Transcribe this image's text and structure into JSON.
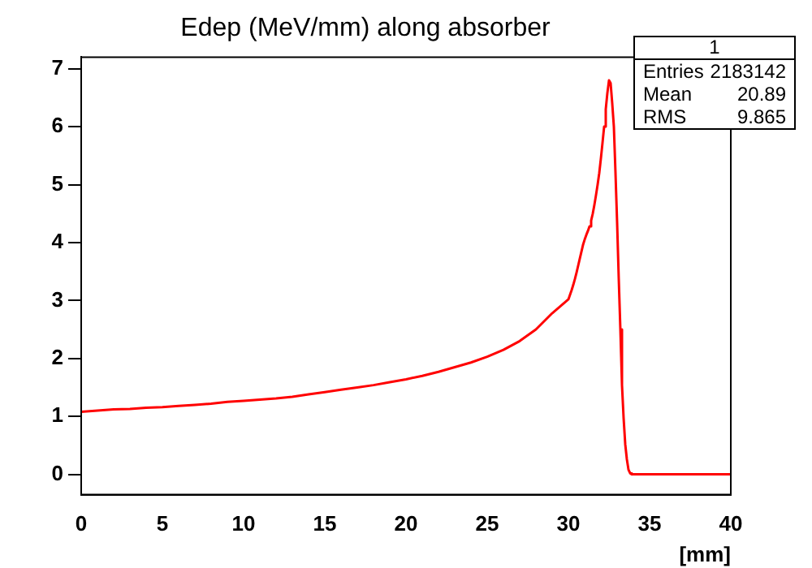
{
  "chart_data": {
    "type": "line",
    "title": "Edep (MeV/mm) along absorber",
    "xlabel": "[mm]",
    "x": [
      0,
      1,
      2,
      3,
      4,
      5,
      6,
      7,
      8,
      9,
      10,
      11,
      12,
      13,
      14,
      15,
      16,
      17,
      18,
      19,
      20,
      21,
      22,
      23,
      24,
      25,
      26,
      27,
      28,
      29,
      30,
      30.1,
      30.2,
      30.3,
      30.4,
      30.5,
      30.6,
      30.7,
      30.8,
      30.9,
      31,
      31.1,
      31.2,
      31.3,
      31.4,
      31.5,
      31.6,
      31.7,
      31.8,
      31.9,
      32,
      32.1,
      32.2,
      32.3,
      32.4,
      32.5,
      32.6,
      32.7,
      32.8,
      32.9,
      33,
      33.1,
      33.2,
      33.3,
      33.4,
      33.5,
      33.6,
      33.7,
      33.8,
      33.9,
      34,
      35,
      36,
      37,
      38,
      39,
      40
    ],
    "values": [
      1.08,
      1.1,
      1.12,
      1.13,
      1.15,
      1.16,
      1.18,
      1.2,
      1.22,
      1.25,
      1.27,
      1.29,
      1.31,
      1.34,
      1.38,
      1.42,
      1.46,
      1.5,
      1.54,
      1.59,
      1.64,
      1.7,
      1.77,
      1.85,
      1.93,
      2.03,
      2.15,
      2.3,
      2.5,
      2.78,
      3.02,
      3.1,
      3.18,
      3.27,
      3.37,
      3.48,
      3.6,
      3.72,
      3.84,
      3.96,
      4.05,
      4.13,
      4.2,
      4.28,
      4.38,
      4.5,
      4.65,
      4.82,
      5.0,
      5.2,
      5.45,
      5.72,
      6.0,
      6.3,
      6.58,
      6.8,
      6.75,
      6.4,
      6.0,
      5.2,
      4.34,
      3.38,
      2.5,
      1.54,
      0.97,
      0.52,
      0.26,
      0.08,
      0.02,
      0,
      0,
      0,
      0,
      0,
      0,
      0,
      0
    ],
    "color": "#ff0000",
    "marker": "none",
    "xlim": [
      0,
      40
    ],
    "xticks": [
      0,
      5,
      10,
      15,
      20,
      25,
      30,
      35,
      40
    ],
    "ylim": [
      -0.35,
      7.2
    ],
    "yticks": [
      0,
      1,
      2,
      3,
      4,
      5,
      6,
      7
    ],
    "grid": false,
    "legend": false,
    "annotations": [
      "1",
      "Entries",
      "2183142",
      "Mean",
      "20.89",
      "RMS",
      "9.865"
    ]
  }
}
